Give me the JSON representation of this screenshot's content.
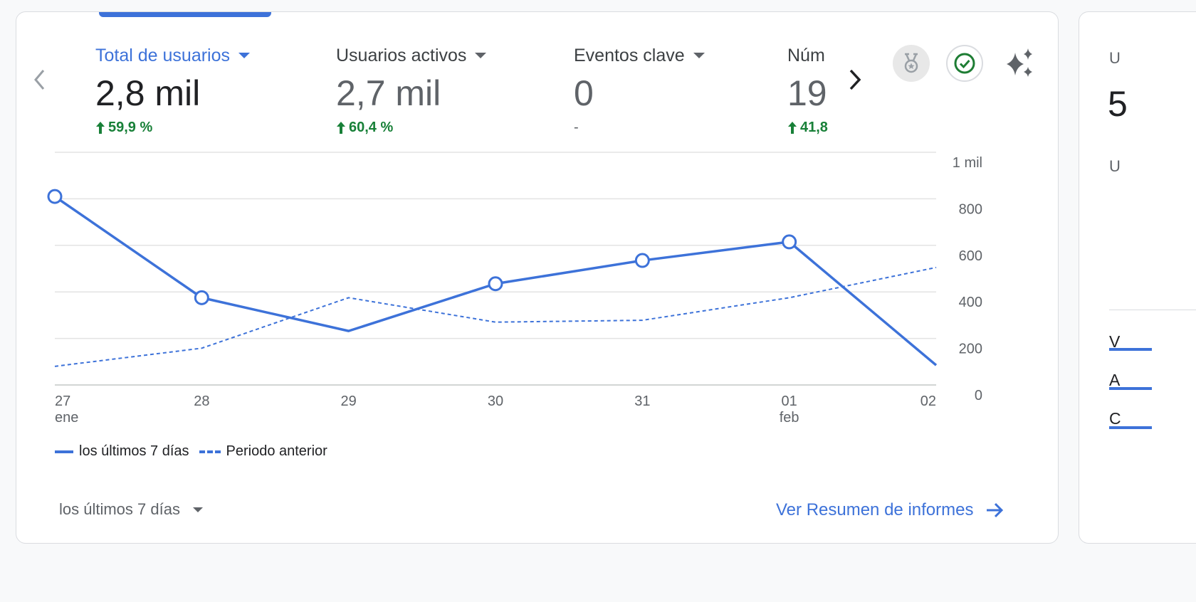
{
  "metrics": [
    {
      "title": "Total de usuarios",
      "value": "2,8 mil",
      "delta": "59,9 %",
      "trend": "up",
      "active": true
    },
    {
      "title": "Usuarios activos",
      "value": "2,7 mil",
      "delta": "60,4 %",
      "trend": "up",
      "active": false
    },
    {
      "title": "Eventos clave",
      "value": "0",
      "delta": "-",
      "trend": "none",
      "active": false
    },
    {
      "title": "Núm",
      "value": "19",
      "delta": "41,8",
      "trend": "up",
      "active": false
    }
  ],
  "icons": {
    "prev": "chevron-left-icon",
    "next": "chevron-right-icon",
    "medal": "medal-icon",
    "check": "check-circle-icon",
    "sparkle": "sparkle-icon",
    "dropdown": "caret-down-icon",
    "arrow": "arrow-right-icon"
  },
  "colors": {
    "accent": "#3d72d9",
    "positive": "#188038",
    "check": "#1e7d34"
  },
  "chart_data": {
    "type": "line",
    "categories": [
      "27",
      "28",
      "29",
      "30",
      "31",
      "01",
      "02"
    ],
    "category_sublabels": [
      "ene",
      "",
      "",
      "",
      "",
      "feb",
      ""
    ],
    "series": [
      {
        "name": "los últimos 7 días",
        "style": "solid",
        "values": [
          810,
          375,
          232,
          435,
          535,
          615,
          85
        ]
      },
      {
        "name": "Periodo anterior",
        "style": "dashed",
        "values": [
          80,
          158,
          375,
          270,
          278,
          375,
          505
        ]
      }
    ],
    "y_ticks": [
      {
        "value": 0,
        "label": "0"
      },
      {
        "value": 200,
        "label": "200"
      },
      {
        "value": 400,
        "label": "400"
      },
      {
        "value": 600,
        "label": "600"
      },
      {
        "value": 800,
        "label": "800"
      },
      {
        "value": 1000,
        "label": "1 mil"
      }
    ],
    "ylim": [
      0,
      1000
    ],
    "y_axis_position": "right",
    "grid": true,
    "legend_position": "bottom-left"
  },
  "footer": {
    "range_label": "los últimos 7 días",
    "report_link": "Ver Resumen de informes"
  },
  "side_card": {
    "letters": [
      "U",
      "5",
      "U",
      "V",
      "A",
      "C"
    ]
  }
}
